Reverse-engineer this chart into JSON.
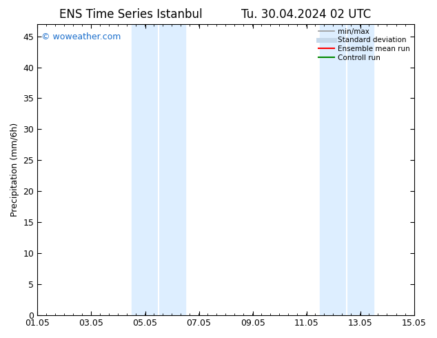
{
  "title_left": "ENS Time Series Istanbul",
  "title_right": "Tu. 30.04.2024 02 UTC",
  "ylabel": "Precipitation (mm/6h)",
  "ylim": [
    0,
    47
  ],
  "yticks": [
    0,
    5,
    10,
    15,
    20,
    25,
    30,
    35,
    40,
    45
  ],
  "xtick_labels": [
    "01.05",
    "03.05",
    "05.05",
    "07.05",
    "09.05",
    "11.05",
    "13.05",
    "15.05"
  ],
  "xtick_positions": [
    0,
    2,
    4,
    6,
    8,
    10,
    12,
    14
  ],
  "xlim": [
    0,
    14
  ],
  "shaded_regions": [
    {
      "start": 3.33,
      "end": 4.0
    },
    {
      "start": 4.0,
      "end": 4.67
    },
    {
      "start": 10.33,
      "end": 11.0
    },
    {
      "start": 11.0,
      "end": 11.67
    }
  ],
  "shaded_color": "#ddeeff",
  "background_color": "#ffffff",
  "watermark_text": "© woweather.com",
  "watermark_color": "#1a6ecc",
  "legend_entries": [
    {
      "label": "min/max",
      "color": "#999999",
      "lw": 1.2
    },
    {
      "label": "Standard deviation",
      "color": "#c5d8ea",
      "lw": 5
    },
    {
      "label": "Ensemble mean run",
      "color": "#ff0000",
      "lw": 1.5
    },
    {
      "label": "Controll run",
      "color": "#008800",
      "lw": 1.5
    }
  ],
  "title_fontsize": 12,
  "tick_fontsize": 9,
  "legend_fontsize": 7.5,
  "minor_tick_interval": 0.333
}
